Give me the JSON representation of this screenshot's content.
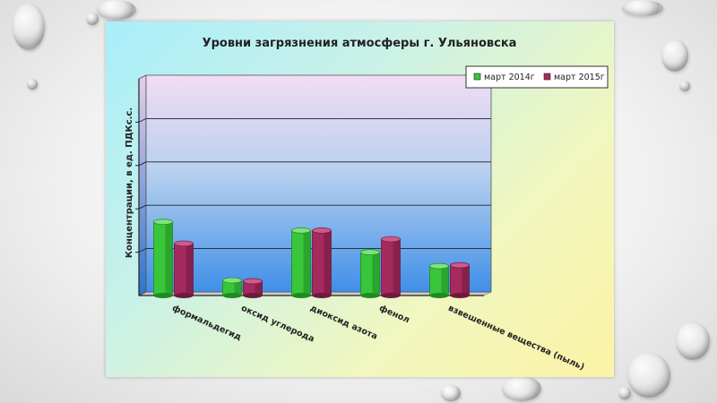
{
  "chart_data": {
    "type": "bar",
    "title": "Уровни загрязнения атмосферы г. Ульяновска",
    "ylabel": "Концентрации, в ед. ПДКс.с.",
    "xlabel": "",
    "categories": [
      "формальдегид",
      "оксид углерода",
      "диоксид азота",
      "фенол",
      "взвешенные вещества (пыль)"
    ],
    "series": [
      {
        "name": "март 2014г",
        "values": [
          1.7,
          0.35,
          1.5,
          1.0,
          0.68
        ]
      },
      {
        "name": "март 2015г",
        "values": [
          1.2,
          0.33,
          1.5,
          1.3,
          0.7
        ]
      }
    ],
    "ylim": [
      0,
      5
    ],
    "grid": true,
    "legend_position": "top-right",
    "colors": {
      "series": [
        "#39c63a",
        "#a52a5e"
      ],
      "series_dark": [
        "#1f8a22",
        "#6e1a3e"
      ],
      "series_top": [
        "#7fe27f",
        "#cc5b8a"
      ]
    }
  }
}
